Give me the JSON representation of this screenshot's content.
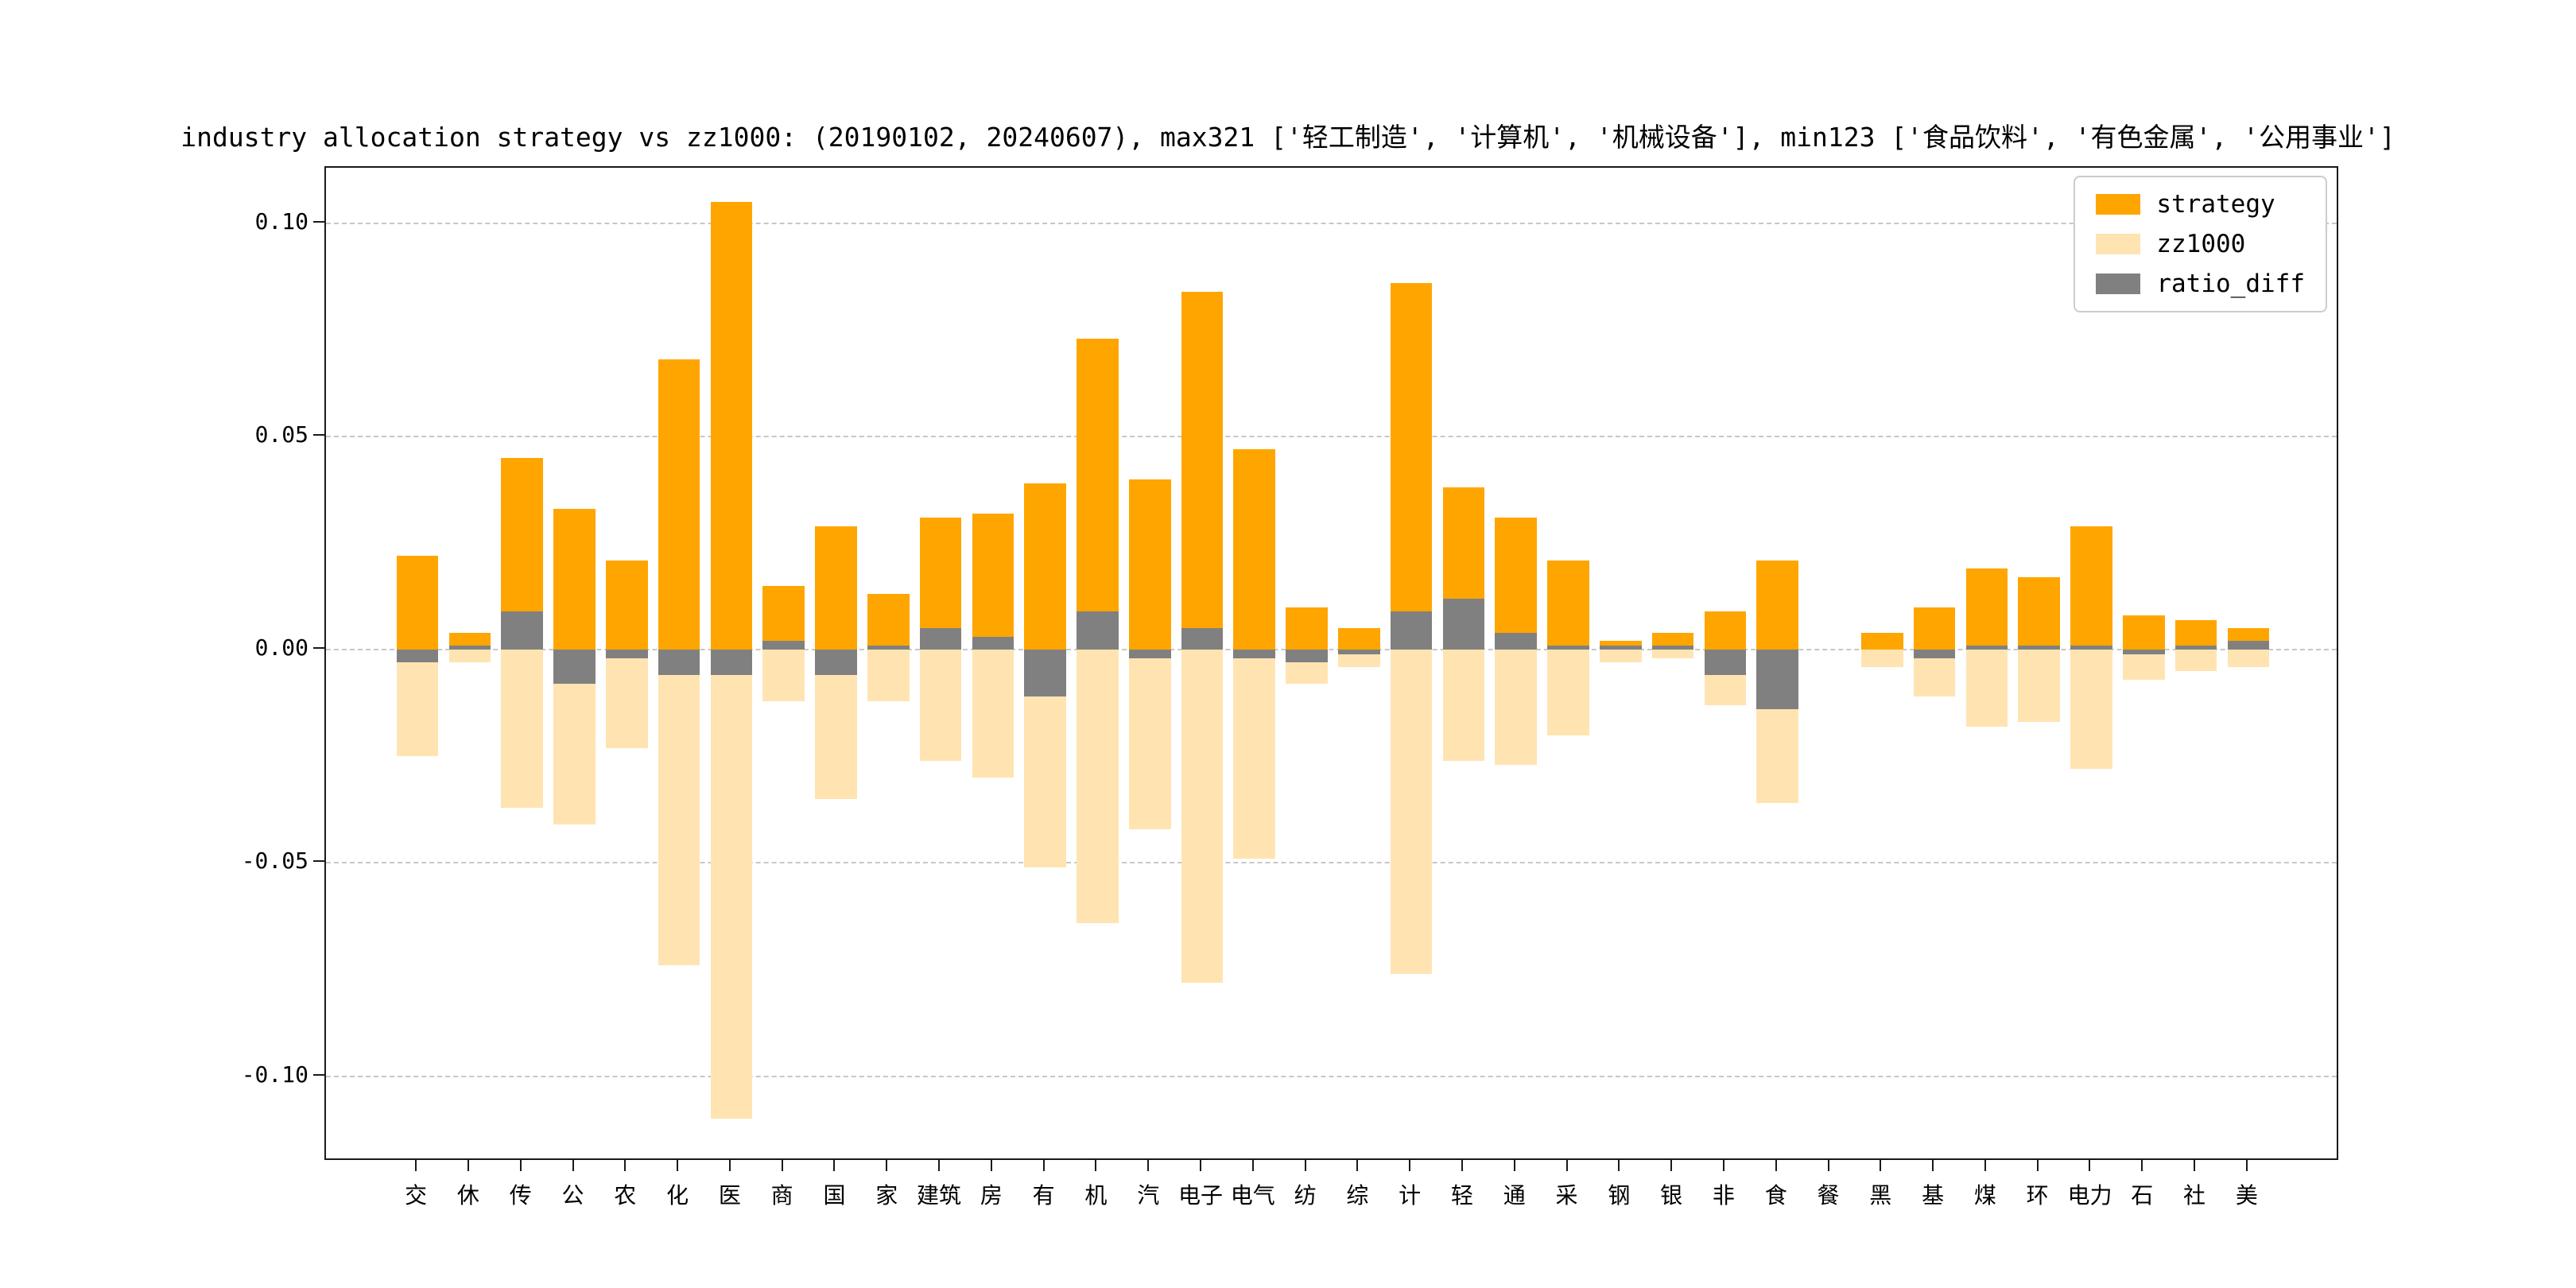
{
  "chart_data": {
    "type": "bar",
    "title": "industry allocation strategy vs zz1000: (20190102, 20240607), max321 ['轻工制造', '计算机', '机械设备'], min123 ['食品饮料', '有色金属', '公用事业']",
    "xlabel": "",
    "ylabel": "",
    "ylim": [
      -0.12,
      0.113
    ],
    "grid": true,
    "grid_style": "dashed",
    "legend_position": "upper right",
    "yticks": [
      {
        "value": 0.1,
        "label": "0.10"
      },
      {
        "value": 0.05,
        "label": "0.05"
      },
      {
        "value": 0.0,
        "label": "0.00"
      },
      {
        "value": -0.05,
        "label": "-0.05"
      },
      {
        "value": -0.1,
        "label": "-0.10"
      }
    ],
    "categories": [
      "交",
      "休",
      "传",
      "公",
      "农",
      "化",
      "医",
      "商",
      "国",
      "家",
      "建筑",
      "房",
      "有",
      "机",
      "汽",
      "电子",
      "电气",
      "纺",
      "综",
      "计",
      "轻",
      "通",
      "采",
      "钢",
      "银",
      "非",
      "食",
      "餐",
      "黑",
      "基",
      "煤",
      "环",
      "电力",
      "石",
      "社",
      "美"
    ],
    "series": [
      {
        "name": "strategy",
        "color": "#FFA500",
        "values": [
          0.022,
          0.004,
          0.045,
          0.033,
          0.021,
          0.068,
          0.105,
          0.015,
          0.029,
          0.013,
          0.031,
          0.032,
          0.039,
          0.073,
          0.04,
          0.084,
          0.047,
          0.01,
          0.005,
          0.086,
          0.038,
          0.031,
          0.021,
          0.002,
          0.004,
          0.009,
          0.021,
          0.0,
          0.004,
          0.01,
          0.019,
          0.017,
          0.029,
          0.008,
          0.007,
          0.005
        ]
      },
      {
        "name": "zz1000",
        "color": "#FFE4B2",
        "values": [
          -0.025,
          -0.003,
          -0.037,
          -0.041,
          -0.023,
          -0.074,
          -0.11,
          -0.012,
          -0.035,
          -0.012,
          -0.026,
          -0.03,
          -0.051,
          -0.064,
          -0.042,
          -0.078,
          -0.049,
          -0.008,
          -0.004,
          -0.076,
          -0.026,
          -0.027,
          -0.02,
          -0.003,
          -0.002,
          -0.013,
          -0.036,
          0.0,
          -0.004,
          -0.011,
          -0.018,
          -0.017,
          -0.028,
          -0.007,
          -0.005,
          -0.004
        ]
      },
      {
        "name": "ratio_diff",
        "color": "#808080",
        "values": [
          -0.003,
          0.001,
          0.009,
          -0.008,
          -0.002,
          -0.006,
          -0.006,
          0.002,
          -0.006,
          0.001,
          0.005,
          0.003,
          -0.011,
          0.009,
          -0.002,
          0.005,
          -0.002,
          -0.003,
          -0.001,
          0.009,
          0.012,
          0.004,
          0.001,
          0.001,
          0.001,
          -0.006,
          -0.014,
          0.0,
          0.0,
          -0.002,
          0.001,
          0.001,
          0.001,
          -0.001,
          0.001,
          0.002
        ]
      }
    ]
  }
}
